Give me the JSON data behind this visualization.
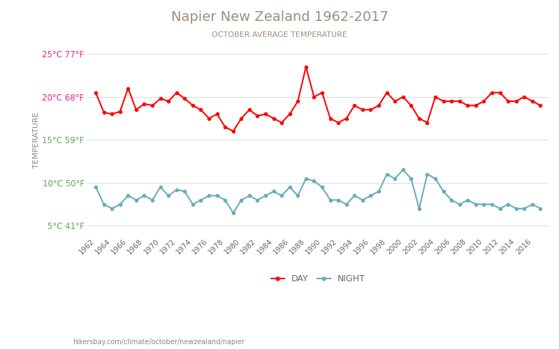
{
  "title": "Napier New Zealand 1962-2017",
  "subtitle": "OCTOBER AVERAGE TEMPERATURE",
  "ylabel": "TEMPERATURE",
  "footer": "hikersbay.com/climate/october/newzealand/napier",
  "years": [
    1962,
    1963,
    1964,
    1965,
    1966,
    1967,
    1968,
    1969,
    1970,
    1971,
    1972,
    1973,
    1974,
    1975,
    1976,
    1977,
    1978,
    1979,
    1980,
    1981,
    1982,
    1983,
    1984,
    1985,
    1986,
    1987,
    1988,
    1989,
    1990,
    1991,
    1992,
    1993,
    1994,
    1995,
    1996,
    1997,
    1998,
    1999,
    2000,
    2001,
    2002,
    2003,
    2004,
    2005,
    2006,
    2007,
    2008,
    2009,
    2010,
    2011,
    2012,
    2013,
    2014,
    2015,
    2016,
    2017
  ],
  "day_temps": [
    20.5,
    18.2,
    18.0,
    18.3,
    21.0,
    18.5,
    19.2,
    19.0,
    19.8,
    19.5,
    20.5,
    19.8,
    19.0,
    18.5,
    17.5,
    18.0,
    16.5,
    16.0,
    17.5,
    18.5,
    17.8,
    18.0,
    17.5,
    17.0,
    18.0,
    19.5,
    23.5,
    20.0,
    20.5,
    17.5,
    17.0,
    17.5,
    19.0,
    18.5,
    18.5,
    19.0,
    20.5,
    19.5,
    20.0,
    19.0,
    17.5,
    17.0,
    20.0,
    19.5,
    19.5,
    19.5,
    19.0,
    19.0,
    19.5,
    20.5,
    20.5,
    19.5,
    19.5,
    20.0,
    19.5,
    19.0
  ],
  "night_temps": [
    9.5,
    7.5,
    7.0,
    7.5,
    8.5,
    8.0,
    8.5,
    8.0,
    9.5,
    8.5,
    9.2,
    9.0,
    7.5,
    8.0,
    8.5,
    8.5,
    8.0,
    6.5,
    8.0,
    8.5,
    8.0,
    8.5,
    9.0,
    8.5,
    9.5,
    8.5,
    10.5,
    10.2,
    9.5,
    8.0,
    8.0,
    7.5,
    8.5,
    8.0,
    8.5,
    9.0,
    11.0,
    10.5,
    11.5,
    10.5,
    7.0,
    11.0,
    10.5,
    9.0,
    8.0,
    7.5,
    8.0,
    7.5,
    7.5,
    7.5,
    7.0,
    7.5,
    7.0,
    7.0,
    7.5,
    7.0
  ],
  "day_color": "#ff0000",
  "night_color": "#6aacb8",
  "day_marker": "o",
  "night_marker": "o",
  "marker_size": 3,
  "line_width": 1.5,
  "ylim_min": 4,
  "ylim_max": 26,
  "yticks_c": [
    5,
    10,
    15,
    20,
    25
  ],
  "ytick_labels": [
    "5°C 41°F",
    "10°C 50°F",
    "15°C 59°F",
    "20°C 68°F",
    "25°C 77°F"
  ],
  "ytick_colors": [
    "#4cae4c",
    "#4cae4c",
    "#4cae4c",
    "#e91e8c",
    "#e91e8c"
  ],
  "title_color": "#9e8e7e",
  "subtitle_color": "#9e8e7e",
  "grid_color": "#dddddd",
  "background_color": "#ffffff",
  "legend_night": "NIGHT",
  "legend_day": "DAY",
  "footer_color": "#888888"
}
